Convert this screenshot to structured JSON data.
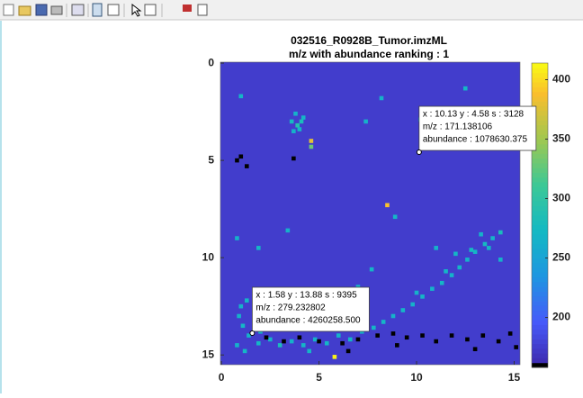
{
  "chart_data": {
    "type": "image",
    "title": "032516_R0928B_Tumor.imzML",
    "subtitle": "m/z with abundance ranking : 1",
    "xlim": [
      -0.05,
      15.3
    ],
    "ylim": [
      -0.05,
      15.5
    ],
    "xticks": [
      0,
      5,
      10,
      15
    ],
    "yticks": [
      0,
      5,
      10,
      15
    ],
    "clim": [
      158,
      414
    ],
    "cticks": [
      200,
      250,
      300,
      350,
      400
    ],
    "background": 175,
    "cells": [
      [
        3.9,
        3.2,
        290
      ],
      [
        4.0,
        3.4,
        270
      ],
      [
        4.1,
        3.0,
        280
      ],
      [
        3.7,
        3.5,
        265
      ],
      [
        4.2,
        2.8,
        270
      ],
      [
        3.6,
        3.0,
        275
      ],
      [
        3.8,
        2.6,
        265
      ],
      [
        4.6,
        4.0,
        380
      ],
      [
        4.6,
        4.3,
        330
      ],
      [
        8.5,
        7.3,
        390
      ],
      [
        10.2,
        2.9,
        270
      ],
      [
        8.2,
        1.8,
        265
      ],
      [
        12.5,
        1.3,
        270
      ],
      [
        7.4,
        3.0,
        265
      ],
      [
        1.0,
        1.7,
        270
      ],
      [
        3.4,
        8.6,
        265
      ],
      [
        1.9,
        9.5,
        270
      ],
      [
        0.8,
        9.0,
        265
      ],
      [
        8.9,
        7.9,
        270
      ],
      [
        13.3,
        8.8,
        265
      ],
      [
        7.7,
        10.6,
        270
      ],
      [
        7.0,
        11.5,
        265
      ],
      [
        13.7,
        9.5,
        270
      ],
      [
        14.3,
        10.1,
        265
      ],
      [
        12.0,
        9.8,
        270
      ],
      [
        11.0,
        9.5,
        265
      ],
      [
        14.3,
        8.7,
        280
      ],
      [
        13.9,
        9.0,
        270
      ],
      [
        13.5,
        9.3,
        275
      ],
      [
        13.0,
        9.7,
        270
      ],
      [
        12.6,
        10.1,
        265
      ],
      [
        12.2,
        10.5,
        270
      ],
      [
        11.8,
        10.9,
        265
      ],
      [
        11.3,
        11.3,
        270
      ],
      [
        10.8,
        11.6,
        265
      ],
      [
        10.3,
        12.0,
        270
      ],
      [
        9.8,
        12.4,
        265
      ],
      [
        9.3,
        12.7,
        270
      ],
      [
        8.8,
        13.0,
        265
      ],
      [
        8.3,
        13.3,
        270
      ],
      [
        12.8,
        9.6,
        275
      ],
      [
        11.5,
        10.7,
        270
      ],
      [
        10.0,
        11.8,
        265
      ],
      [
        1.0,
        12.5,
        265
      ],
      [
        1.3,
        12.2,
        270
      ],
      [
        0.9,
        13.0,
        265
      ],
      [
        1.1,
        13.5,
        270
      ],
      [
        1.4,
        14.0,
        265
      ],
      [
        1.9,
        14.4,
        270
      ],
      [
        2.5,
        14.2,
        265
      ],
      [
        3.0,
        14.5,
        280
      ],
      [
        3.6,
        14.3,
        265
      ],
      [
        4.2,
        14.5,
        270
      ],
      [
        4.8,
        14.2,
        265
      ],
      [
        5.4,
        14.4,
        270
      ],
      [
        6.0,
        14.0,
        265
      ],
      [
        6.6,
        14.2,
        270
      ],
      [
        7.2,
        13.8,
        265
      ],
      [
        7.8,
        13.6,
        270
      ],
      [
        0.8,
        14.5,
        265
      ],
      [
        1.2,
        14.8,
        270
      ],
      [
        2.0,
        13.8,
        265
      ],
      [
        4.5,
        14.8,
        270
      ],
      [
        5.8,
        13.7,
        265
      ],
      [
        5.8,
        15.1,
        410
      ]
    ],
    "missing": [
      [
        1.0,
        4.8
      ],
      [
        1.3,
        5.3
      ],
      [
        0.8,
        5.0
      ],
      [
        3.7,
        4.9
      ],
      [
        2.3,
        14.1
      ],
      [
        3.2,
        14.3
      ],
      [
        4.0,
        14.1
      ],
      [
        5.0,
        14.3
      ],
      [
        6.2,
        14.4
      ],
      [
        7.0,
        14.2
      ],
      [
        8.0,
        14.0
      ],
      [
        8.8,
        13.9
      ],
      [
        9.5,
        14.1
      ],
      [
        10.3,
        14.0
      ],
      [
        11.0,
        14.3
      ],
      [
        11.8,
        14.0
      ],
      [
        12.6,
        14.2
      ],
      [
        13.4,
        14.0
      ],
      [
        14.2,
        14.3
      ],
      [
        14.8,
        13.9
      ],
      [
        15.1,
        14.6
      ],
      [
        9.0,
        14.5
      ],
      [
        13.0,
        14.7
      ],
      [
        6.5,
        14.8
      ]
    ],
    "datatips": [
      {
        "x": 10.13,
        "y": 4.58,
        "lines": [
          "x : 10.13  y : 4.58  s : 3128",
          "m/z            : 171.138106",
          "abundance : 1078630.375"
        ]
      },
      {
        "x": 1.58,
        "y": 13.88,
        "lines": [
          "x : 1.58  y : 13.88  s : 9395",
          "m/z            : 279.232802",
          "abundance : 4260258.500"
        ]
      }
    ]
  }
}
